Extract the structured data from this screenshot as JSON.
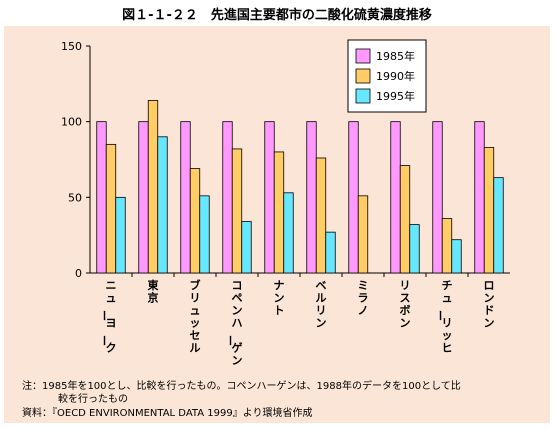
{
  "figure_title": "図１-１-２２　先進国主要都市の二酸化硫黄濃度推移",
  "notes": [
    "注：1985年を100とし、比較を行ったもの。コペンハーゲンは、1988年のデータを100として比",
    "較を行ったもの",
    "資料：『OECD ENVIRONMENTAL DATA 1999』より環境省作成"
  ],
  "colors": {
    "panel_bg": "#fbe5d6",
    "series": [
      "#ff99ff",
      "#ffcc66",
      "#66e6ff"
    ]
  },
  "chart_data": {
    "type": "bar",
    "title": "",
    "xlabel": "",
    "ylabel": "",
    "ylim": [
      0,
      150
    ],
    "yticks": [
      0,
      50,
      100,
      150
    ],
    "grid": false,
    "legend_position": "top-right",
    "categories": [
      "ニューヨーク",
      "東京",
      "ブリュッセル",
      "コペンハーゲン",
      "ナント",
      "ベルリン",
      "ミラノ",
      "リスボン",
      "チューリッヒ",
      "ロンドン"
    ],
    "series": [
      {
        "name": "1985年",
        "values": [
          100,
          100,
          100,
          100,
          100,
          100,
          100,
          100,
          100,
          100
        ]
      },
      {
        "name": "1990年",
        "values": [
          85,
          114,
          69,
          82,
          80,
          76,
          51,
          71,
          36,
          83
        ]
      },
      {
        "name": "1995年",
        "values": [
          50,
          90,
          51,
          34,
          53,
          27,
          null,
          32,
          22,
          63
        ]
      }
    ]
  }
}
